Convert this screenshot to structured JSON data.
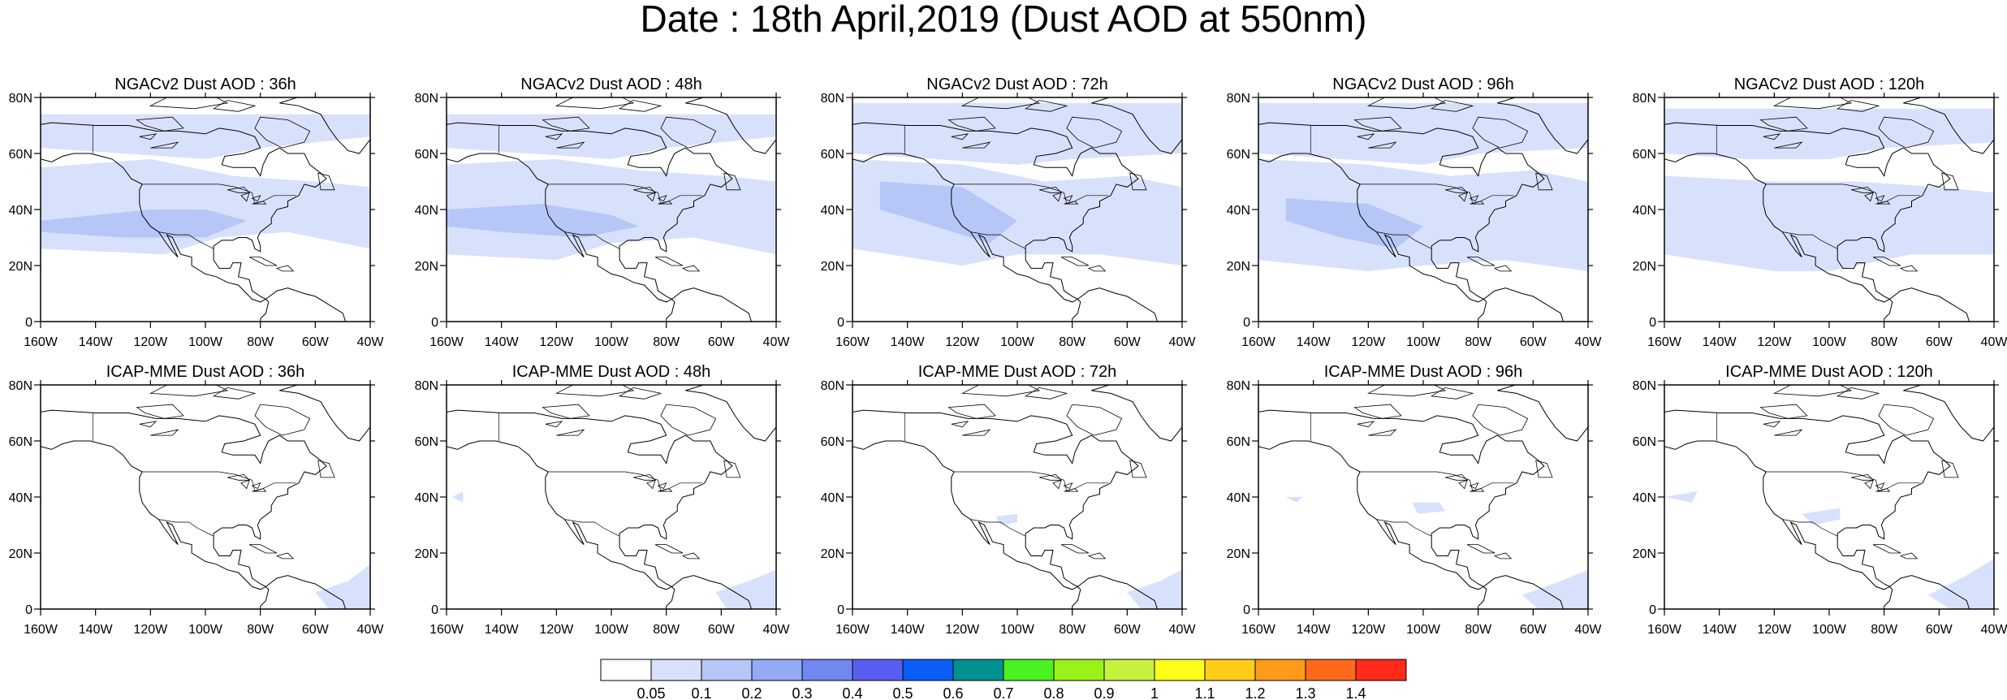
{
  "title": "Date : 18th April,2019 (Dust AOD at 550nm)",
  "axes": {
    "x_ticks": [
      "160W",
      "140W",
      "120W",
      "100W",
      "80W",
      "60W",
      "40W"
    ],
    "y_ticks": [
      "80N",
      "60N",
      "40N",
      "20N",
      "0"
    ],
    "lon_range": [
      -160,
      -40
    ],
    "lat_range": [
      0,
      80
    ]
  },
  "panel_rows": [
    {
      "row": "ngac",
      "titles": [
        "NGACv2 Dust AOD : 36h",
        "NGACv2 Dust AOD : 48h",
        "NGACv2 Dust AOD : 72h",
        "NGACv2 Dust AOD : 96h",
        "NGACv2 Dust AOD : 120h"
      ]
    },
    {
      "row": "icap",
      "titles": [
        "ICAP-MME Dust AOD : 36h",
        "ICAP-MME Dust AOD : 48h",
        "ICAP-MME Dust AOD : 72h",
        "ICAP-MME Dust AOD : 96h",
        "ICAP-MME Dust AOD : 120h"
      ]
    }
  ],
  "colorbar": {
    "labels": [
      "0.05",
      "0.1",
      "0.2",
      "0.3",
      "0.4",
      "0.5",
      "0.6",
      "0.7",
      "0.8",
      "0.9",
      "1",
      "1.1",
      "1.2",
      "1.3",
      "1.4"
    ],
    "colors": [
      "#ffffff",
      "#d8e1fb",
      "#b5c6f7",
      "#93aaf4",
      "#7088f0",
      "#5a5ef0",
      "#0a5ef7",
      "#009090",
      "#4cf21f",
      "#9af21a",
      "#c6f23f",
      "#ffff1a",
      "#ffcc1a",
      "#ff9b1a",
      "#ff6a1a",
      "#ff2a1a"
    ]
  },
  "colors": {
    "land_outline": "#000000",
    "dust_light": "#d8e1fb",
    "dust_medium": "#b5c6f7"
  }
}
